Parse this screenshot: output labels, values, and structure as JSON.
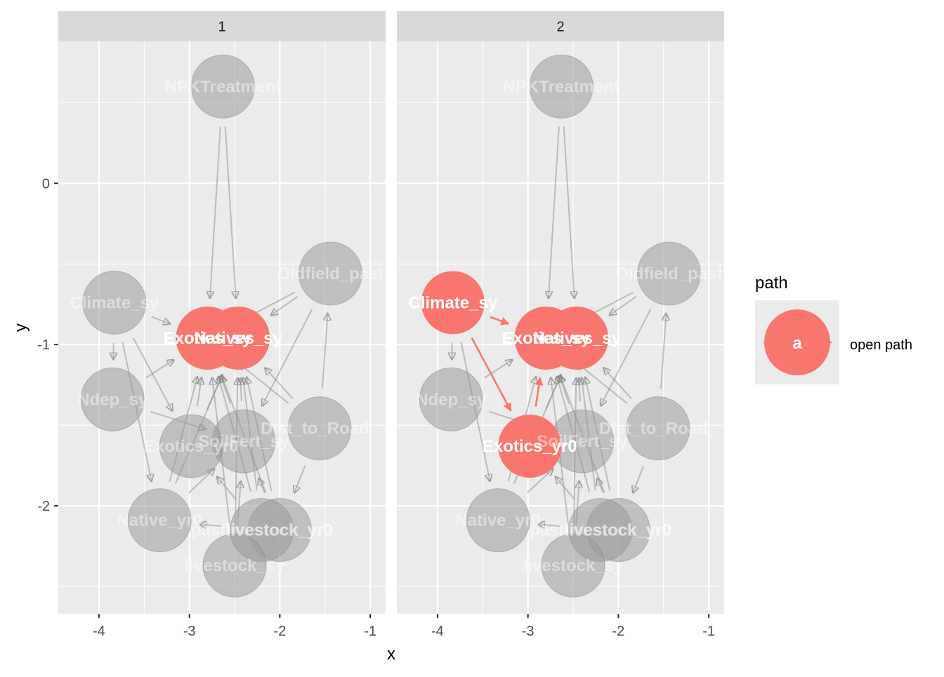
{
  "chart_data": {
    "type": "scatter",
    "subtype": "faceted DAG plot (nodes and directed edges)",
    "xlabel": "x",
    "ylabel": "y",
    "xlim": [
      -4.45,
      -0.83
    ],
    "ylim": [
      -2.67,
      0.88
    ],
    "x_ticks": [
      -4,
      -3,
      -2,
      -1
    ],
    "x_tick_labels": [
      "-4",
      "-3",
      "-2",
      "-1"
    ],
    "y_ticks": [
      0,
      -1,
      -2
    ],
    "y_tick_labels": [
      "0",
      "-1",
      "-2"
    ],
    "grid": true,
    "legend": {
      "title": "path",
      "position": "right",
      "key_label": "a",
      "entries": [
        {
          "label": "open path",
          "color": "#F8766D"
        }
      ]
    },
    "colors": {
      "highlight": "#F8766D",
      "inactive_node": "#9a9a9a",
      "inactive_edge": "#8c8c8c",
      "panel_bg": "#EBEBEB",
      "strip_bg": "#D9D9D9",
      "grid": "#FFFFFF"
    },
    "nodes": [
      {
        "name": "NPKTreatment",
        "x": -2.63,
        "y": 0.6
      },
      {
        "name": "Climate_sy",
        "x": -3.83,
        "y": -0.74
      },
      {
        "name": "Oldfield_past",
        "x": -1.44,
        "y": -0.56
      },
      {
        "name": "Exotics_sy",
        "x": -2.8,
        "y": -0.96
      },
      {
        "name": "Natives_sy",
        "x": -2.46,
        "y": -0.96
      },
      {
        "name": "Ndep_sy",
        "x": -3.85,
        "y": -1.34
      },
      {
        "name": "Dist_to_Road",
        "x": -1.56,
        "y": -1.52
      },
      {
        "name": "SoilFert_sy",
        "x": -2.4,
        "y": -1.6
      },
      {
        "name": "Exotics_yr0",
        "x": -2.98,
        "y": -1.63
      },
      {
        "name": "Native_yr0",
        "x": -3.33,
        "y": -2.09
      },
      {
        "name": "livestock_yr0",
        "x": -2.0,
        "y": -2.15
      },
      {
        "name": "pastlivestock_yr0",
        "x": -2.2,
        "y": -2.15
      },
      {
        "name": "livestock_sy",
        "x": -2.5,
        "y": -2.37
      }
    ],
    "node_labels": [
      {
        "node": "NPKTreatment",
        "text": "NPKTreatment"
      },
      {
        "node": "Climate_sy",
        "text": "Climate_sy"
      },
      {
        "node": "Oldfield_past",
        "text": "Oldfield_past"
      },
      {
        "node": "Exotics_sy",
        "text": "Exotics_sy"
      },
      {
        "node": "Natives_sy",
        "text": "Natives_sy"
      },
      {
        "node": "Ndep_sy",
        "text": "Ndep_sy"
      },
      {
        "node": "Dist_to_Road",
        "text": "Dist_to_Road_"
      },
      {
        "node": "SoilFert_sy",
        "text": "SoilFert_sy"
      },
      {
        "node": "Exotics_yr0",
        "text": "Exotics_yr0"
      },
      {
        "node": "Native_yr0",
        "text": "Native_yr0"
      },
      {
        "node": "livestock_yr0",
        "text": "livestock_yr0"
      },
      {
        "node": "pastlivestock_yr0",
        "text": "pastlivestock_yr0"
      },
      {
        "node": "livestock_sy",
        "text": "livestock_sy"
      }
    ],
    "edges": [
      [
        "NPKTreatment",
        "Exotics_sy"
      ],
      [
        "NPKTreatment",
        "Natives_sy"
      ],
      [
        "Climate_sy",
        "Exotics_sy"
      ],
      [
        "Climate_sy",
        "Ndep_sy"
      ],
      [
        "Climate_sy",
        "Exotics_yr0"
      ],
      [
        "Climate_sy",
        "Native_yr0"
      ],
      [
        "Oldfield_past",
        "Exotics_sy"
      ],
      [
        "Oldfield_past",
        "Natives_sy"
      ],
      [
        "Oldfield_past",
        "SoilFert_sy"
      ],
      [
        "Ndep_sy",
        "Exotics_sy"
      ],
      [
        "Ndep_sy",
        "SoilFert_sy"
      ],
      [
        "Dist_to_Road",
        "Exotics_sy"
      ],
      [
        "Dist_to_Road",
        "Natives_sy"
      ],
      [
        "Dist_to_Road",
        "Oldfield_past"
      ],
      [
        "Dist_to_Road",
        "livestock_yr0"
      ],
      [
        "SoilFert_sy",
        "Exotics_sy"
      ],
      [
        "SoilFert_sy",
        "Natives_sy"
      ],
      [
        "Exotics_yr0",
        "Exotics_sy"
      ],
      [
        "Exotics_yr0",
        "Natives_sy"
      ],
      [
        "Native_yr0",
        "Exotics_sy"
      ],
      [
        "Native_yr0",
        "Natives_sy"
      ],
      [
        "Native_yr0",
        "SoilFert_sy"
      ],
      [
        "livestock_yr0",
        "Exotics_sy"
      ],
      [
        "livestock_yr0",
        "Natives_sy"
      ],
      [
        "livestock_yr0",
        "SoilFert_sy"
      ],
      [
        "pastlivestock_yr0",
        "Exotics_sy"
      ],
      [
        "pastlivestock_yr0",
        "Natives_sy"
      ],
      [
        "pastlivestock_yr0",
        "Native_yr0"
      ],
      [
        "pastlivestock_yr0",
        "Exotics_yr0"
      ],
      [
        "livestock_sy",
        "Exotics_sy"
      ],
      [
        "livestock_sy",
        "Natives_sy"
      ],
      [
        "livestock_sy",
        "SoilFert_sy"
      ]
    ],
    "panels": [
      {
        "strip": "1",
        "highlight_nodes": [
          "Exotics_sy",
          "Natives_sy"
        ],
        "highlight_edges": []
      },
      {
        "strip": "2",
        "highlight_nodes": [
          "Climate_sy",
          "Exotics_sy",
          "Natives_sy",
          "Exotics_yr0"
        ],
        "highlight_edges": [
          [
            "Climate_sy",
            "Exotics_sy"
          ],
          [
            "Climate_sy",
            "Exotics_yr0"
          ],
          [
            "Exotics_yr0",
            "Exotics_sy"
          ]
        ]
      }
    ]
  }
}
